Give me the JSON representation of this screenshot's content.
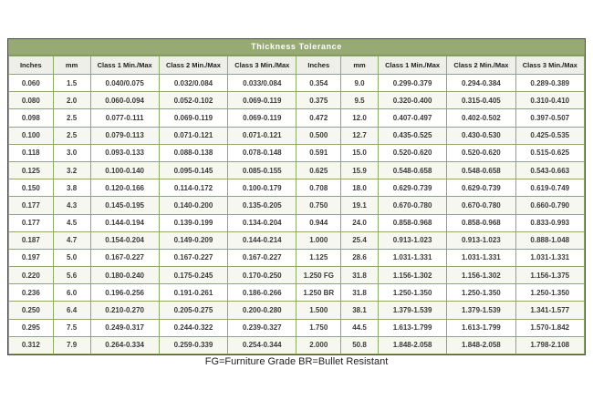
{
  "table": {
    "title": "Thickness Tolerance",
    "footnote": "FG=Furniture Grade BR=Bullet Resistant",
    "columns": [
      "Inches",
      "mm",
      "Class 1 Min./Max",
      "Class 2 Min./Max",
      "Class 3 Min./Max"
    ],
    "left_rows": [
      [
        "0.060",
        "1.5",
        "0.040/0.075",
        "0.032/0.084",
        "0.033/0.084"
      ],
      [
        "0.080",
        "2.0",
        "0.060-0.094",
        "0.052-0.102",
        "0.069-0.119"
      ],
      [
        "0.098",
        "2.5",
        "0.077-0.111",
        "0.069-0.119",
        "0.069-0.119"
      ],
      [
        "0.100",
        "2.5",
        "0.079-0.113",
        "0.071-0.121",
        "0.071-0.121"
      ],
      [
        "0.118",
        "3.0",
        "0.093-0.133",
        "0.088-0.138",
        "0.078-0.148"
      ],
      [
        "0.125",
        "3.2",
        "0.100-0.140",
        "0.095-0.145",
        "0.085-0.155"
      ],
      [
        "0.150",
        "3.8",
        "0.120-0.166",
        "0.114-0.172",
        "0.100-0.179"
      ],
      [
        "0.177",
        "4.3",
        "0.145-0.195",
        "0.140-0.200",
        "0.135-0.205"
      ],
      [
        "0.177",
        "4.5",
        "0.144-0.194",
        "0.139-0.199",
        "0.134-0.204"
      ],
      [
        "0.187",
        "4.7",
        "0.154-0.204",
        "0.149-0.209",
        "0.144-0.214"
      ],
      [
        "0.197",
        "5.0",
        "0.167-0.227",
        "0.167-0.227",
        "0.167-0.227"
      ],
      [
        "0.220",
        "5.6",
        "0.180-0.240",
        "0.175-0.245",
        "0.170-0.250"
      ],
      [
        "0.236",
        "6.0",
        "0.196-0.256",
        "0.191-0.261",
        "0.186-0.266"
      ],
      [
        "0.250",
        "6.4",
        "0.210-0.270",
        "0.205-0.275",
        "0.200-0.280"
      ],
      [
        "0.295",
        "7.5",
        "0.249-0.317",
        "0.244-0.322",
        "0.239-0.327"
      ],
      [
        "0.312",
        "7.9",
        "0.264-0.334",
        "0.259-0.339",
        "0.254-0.344"
      ]
    ],
    "right_rows": [
      [
        "0.354",
        "9.0",
        "0.299-0.379",
        "0.294-0.384",
        "0.289-0.389"
      ],
      [
        "0.375",
        "9.5",
        "0.320-0.400",
        "0.315-0.405",
        "0.310-0.410"
      ],
      [
        "0.472",
        "12.0",
        "0.407-0.497",
        "0.402-0.502",
        "0.397-0.507"
      ],
      [
        "0.500",
        "12.7",
        "0.435-0.525",
        "0.430-0.530",
        "0.425-0.535"
      ],
      [
        "0.591",
        "15.0",
        "0.520-0.620",
        "0.520-0.620",
        "0.515-0.625"
      ],
      [
        "0.625",
        "15.9",
        "0.548-0.658",
        "0.548-0.658",
        "0.543-0.663"
      ],
      [
        "0.708",
        "18.0",
        "0.629-0.739",
        "0.629-0.739",
        "0.619-0.749"
      ],
      [
        "0.750",
        "19.1",
        "0.670-0.780",
        "0.670-0.780",
        "0.660-0.790"
      ],
      [
        "0.944",
        "24.0",
        "0.858-0.968",
        "0.858-0.968",
        "0.833-0.993"
      ],
      [
        "1.000",
        "25.4",
        "0.913-1.023",
        "0.913-1.023",
        "0.888-1.048"
      ],
      [
        "1.125",
        "28.6",
        "1.031-1.331",
        "1.031-1.331",
        "1.031-1.331"
      ],
      [
        "1.250 FG",
        "31.8",
        "1.156-1.302",
        "1.156-1.302",
        "1.156-1.375"
      ],
      [
        "1.250 BR",
        "31.8",
        "1.250-1.350",
        "1.250-1.350",
        "1.250-1.350"
      ],
      [
        "1.500",
        "38.1",
        "1.379-1.539",
        "1.379-1.539",
        "1.341-1.577"
      ],
      [
        "1.750",
        "44.5",
        "1.613-1.799",
        "1.613-1.799",
        "1.570-1.842"
      ],
      [
        "2.000",
        "50.8",
        "1.848-2.058",
        "1.848-2.058",
        "1.798-2.108"
      ]
    ],
    "colors": {
      "title_bar_green": "#97aa74",
      "grid_green": "#8fa96d",
      "header_bg": "#efefe9",
      "outer_border": "#4a4a4a"
    }
  }
}
